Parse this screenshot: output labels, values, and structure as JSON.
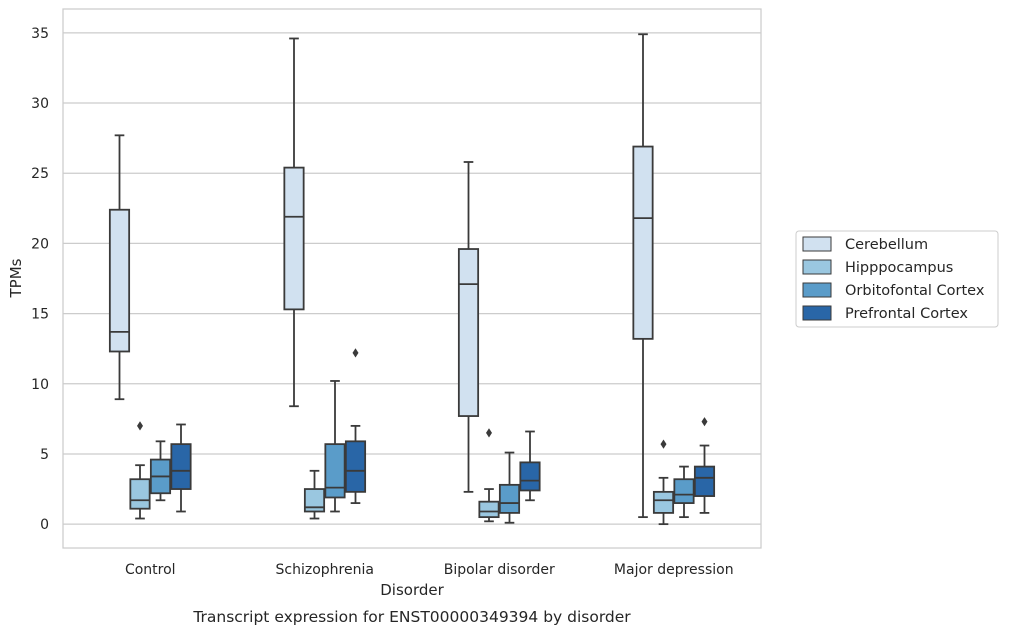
{
  "chart_data": {
    "type": "boxplot",
    "caption": "Transcript expression for ENST00000349394 by disorder",
    "xlabel": "Disorder",
    "ylabel": "TPMs",
    "ylim": [
      -1.7,
      36.7
    ],
    "yticks": [
      0,
      5,
      10,
      15,
      20,
      25,
      30,
      35
    ],
    "grid": true,
    "legend_position": "right",
    "categories": [
      "Control",
      "Schizophrenia",
      "Bipolar disorder",
      "Major depression"
    ],
    "series": [
      {
        "name": "Cerebellum",
        "color": "#d1e1f0",
        "boxes": [
          {
            "whislo": 8.9,
            "q1": 12.3,
            "med": 13.7,
            "q3": 22.4,
            "whishi": 27.7,
            "fliers": []
          },
          {
            "whislo": 8.4,
            "q1": 15.3,
            "med": 21.9,
            "q3": 25.4,
            "whishi": 34.6,
            "fliers": []
          },
          {
            "whislo": 2.3,
            "q1": 7.7,
            "med": 17.1,
            "q3": 19.6,
            "whishi": 25.8,
            "fliers": []
          },
          {
            "whislo": 0.5,
            "q1": 13.2,
            "med": 21.8,
            "q3": 26.9,
            "whishi": 34.9,
            "fliers": []
          }
        ]
      },
      {
        "name": "Hipppocampus",
        "color": "#9ac7e0",
        "boxes": [
          {
            "whislo": 0.4,
            "q1": 1.1,
            "med": 1.7,
            "q3": 3.2,
            "whishi": 4.2,
            "fliers": [
              7.0
            ]
          },
          {
            "whislo": 0.4,
            "q1": 0.9,
            "med": 1.2,
            "q3": 2.5,
            "whishi": 3.8,
            "fliers": []
          },
          {
            "whislo": 0.2,
            "q1": 0.5,
            "med": 0.9,
            "q3": 1.6,
            "whishi": 2.5,
            "fliers": [
              6.5
            ]
          },
          {
            "whislo": 0.0,
            "q1": 0.8,
            "med": 1.7,
            "q3": 2.3,
            "whishi": 3.3,
            "fliers": [
              5.7
            ]
          }
        ]
      },
      {
        "name": "Orbitofontal Cortex",
        "color": "#5a9cc9",
        "boxes": [
          {
            "whislo": 1.7,
            "q1": 2.2,
            "med": 3.4,
            "q3": 4.6,
            "whishi": 5.9,
            "fliers": []
          },
          {
            "whislo": 0.9,
            "q1": 1.9,
            "med": 2.6,
            "q3": 5.7,
            "whishi": 10.2,
            "fliers": []
          },
          {
            "whislo": 0.1,
            "q1": 0.8,
            "med": 1.5,
            "q3": 2.8,
            "whishi": 5.1,
            "fliers": []
          },
          {
            "whislo": 0.5,
            "q1": 1.5,
            "med": 2.1,
            "q3": 3.2,
            "whishi": 4.1,
            "fliers": []
          }
        ]
      },
      {
        "name": "Prefrontal Cortex",
        "color": "#2966a7",
        "boxes": [
          {
            "whislo": 0.9,
            "q1": 2.5,
            "med": 3.8,
            "q3": 5.7,
            "whishi": 7.1,
            "fliers": []
          },
          {
            "whislo": 1.5,
            "q1": 2.3,
            "med": 3.8,
            "q3": 5.9,
            "whishi": 7.0,
            "fliers": [
              12.2
            ]
          },
          {
            "whislo": 1.7,
            "q1": 2.4,
            "med": 3.1,
            "q3": 4.4,
            "whishi": 6.6,
            "fliers": []
          },
          {
            "whislo": 0.8,
            "q1": 2.0,
            "med": 3.3,
            "q3": 4.1,
            "whishi": 5.6,
            "fliers": [
              7.3
            ]
          }
        ]
      }
    ]
  }
}
